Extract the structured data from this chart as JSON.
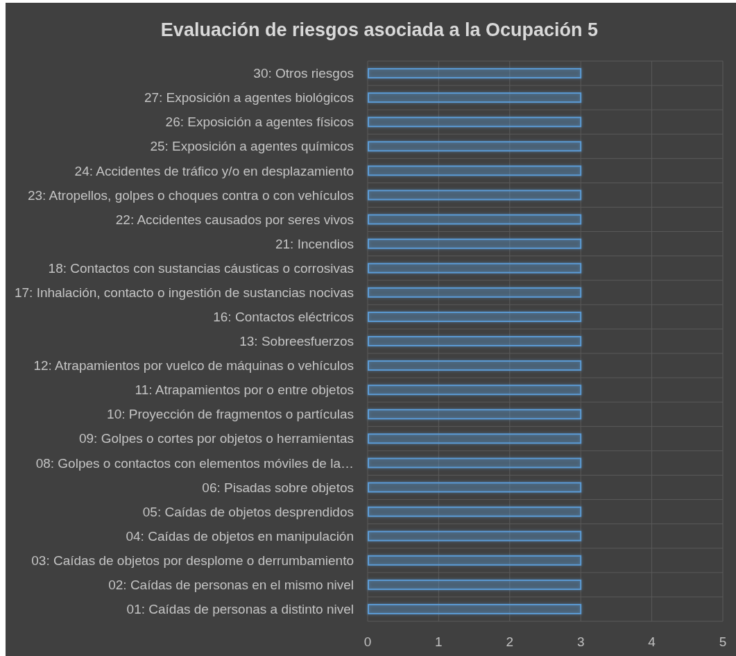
{
  "chart_data": {
    "type": "bar",
    "orientation": "horizontal",
    "title": "Evaluación de riesgos asociada a la Ocupación 5",
    "categories": [
      "30: Otros riesgos",
      "27: Exposición a agentes biológicos",
      "26: Exposición a agentes físicos",
      "25: Exposición a agentes químicos",
      "24: Accidentes de tráfico y/o en desplazamiento",
      "23: Atropellos, golpes o choques contra o con vehículos",
      "22: Accidentes causados por seres vivos",
      "21: Incendios",
      "18: Contactos con sustancias cáusticas o corrosivas",
      "17: Inhalación, contacto o ingestión de sustancias nocivas",
      "16: Contactos eléctricos",
      "13: Sobreesfuerzos",
      "12: Atrapamientos por vuelco de máquinas o vehículos",
      "11: Atrapamientos por o entre objetos",
      "10: Proyección de fragmentos o partículas",
      "09: Golpes o cortes por objetos o herramientas",
      "08: Golpes o contactos con elementos móviles de la…",
      "06: Pisadas sobre objetos",
      "05: Caídas de objetos desprendidos",
      "04: Caídas de objetos en manipulación",
      "03: Caídas de objetos por desplome o derrumbamiento",
      "02: Caídas de personas en el mismo nivel",
      "01: Caídas de personas a distinto nivel"
    ],
    "values": [
      3,
      3,
      3,
      3,
      3,
      3,
      3,
      3,
      3,
      3,
      3,
      3,
      3,
      3,
      3,
      3,
      3,
      3,
      3,
      3,
      3,
      3,
      3
    ],
    "color": "#5b9bd5",
    "xlim": [
      0,
      5
    ],
    "xticks": [
      0,
      1,
      2,
      3,
      4,
      5
    ],
    "grid": true
  }
}
